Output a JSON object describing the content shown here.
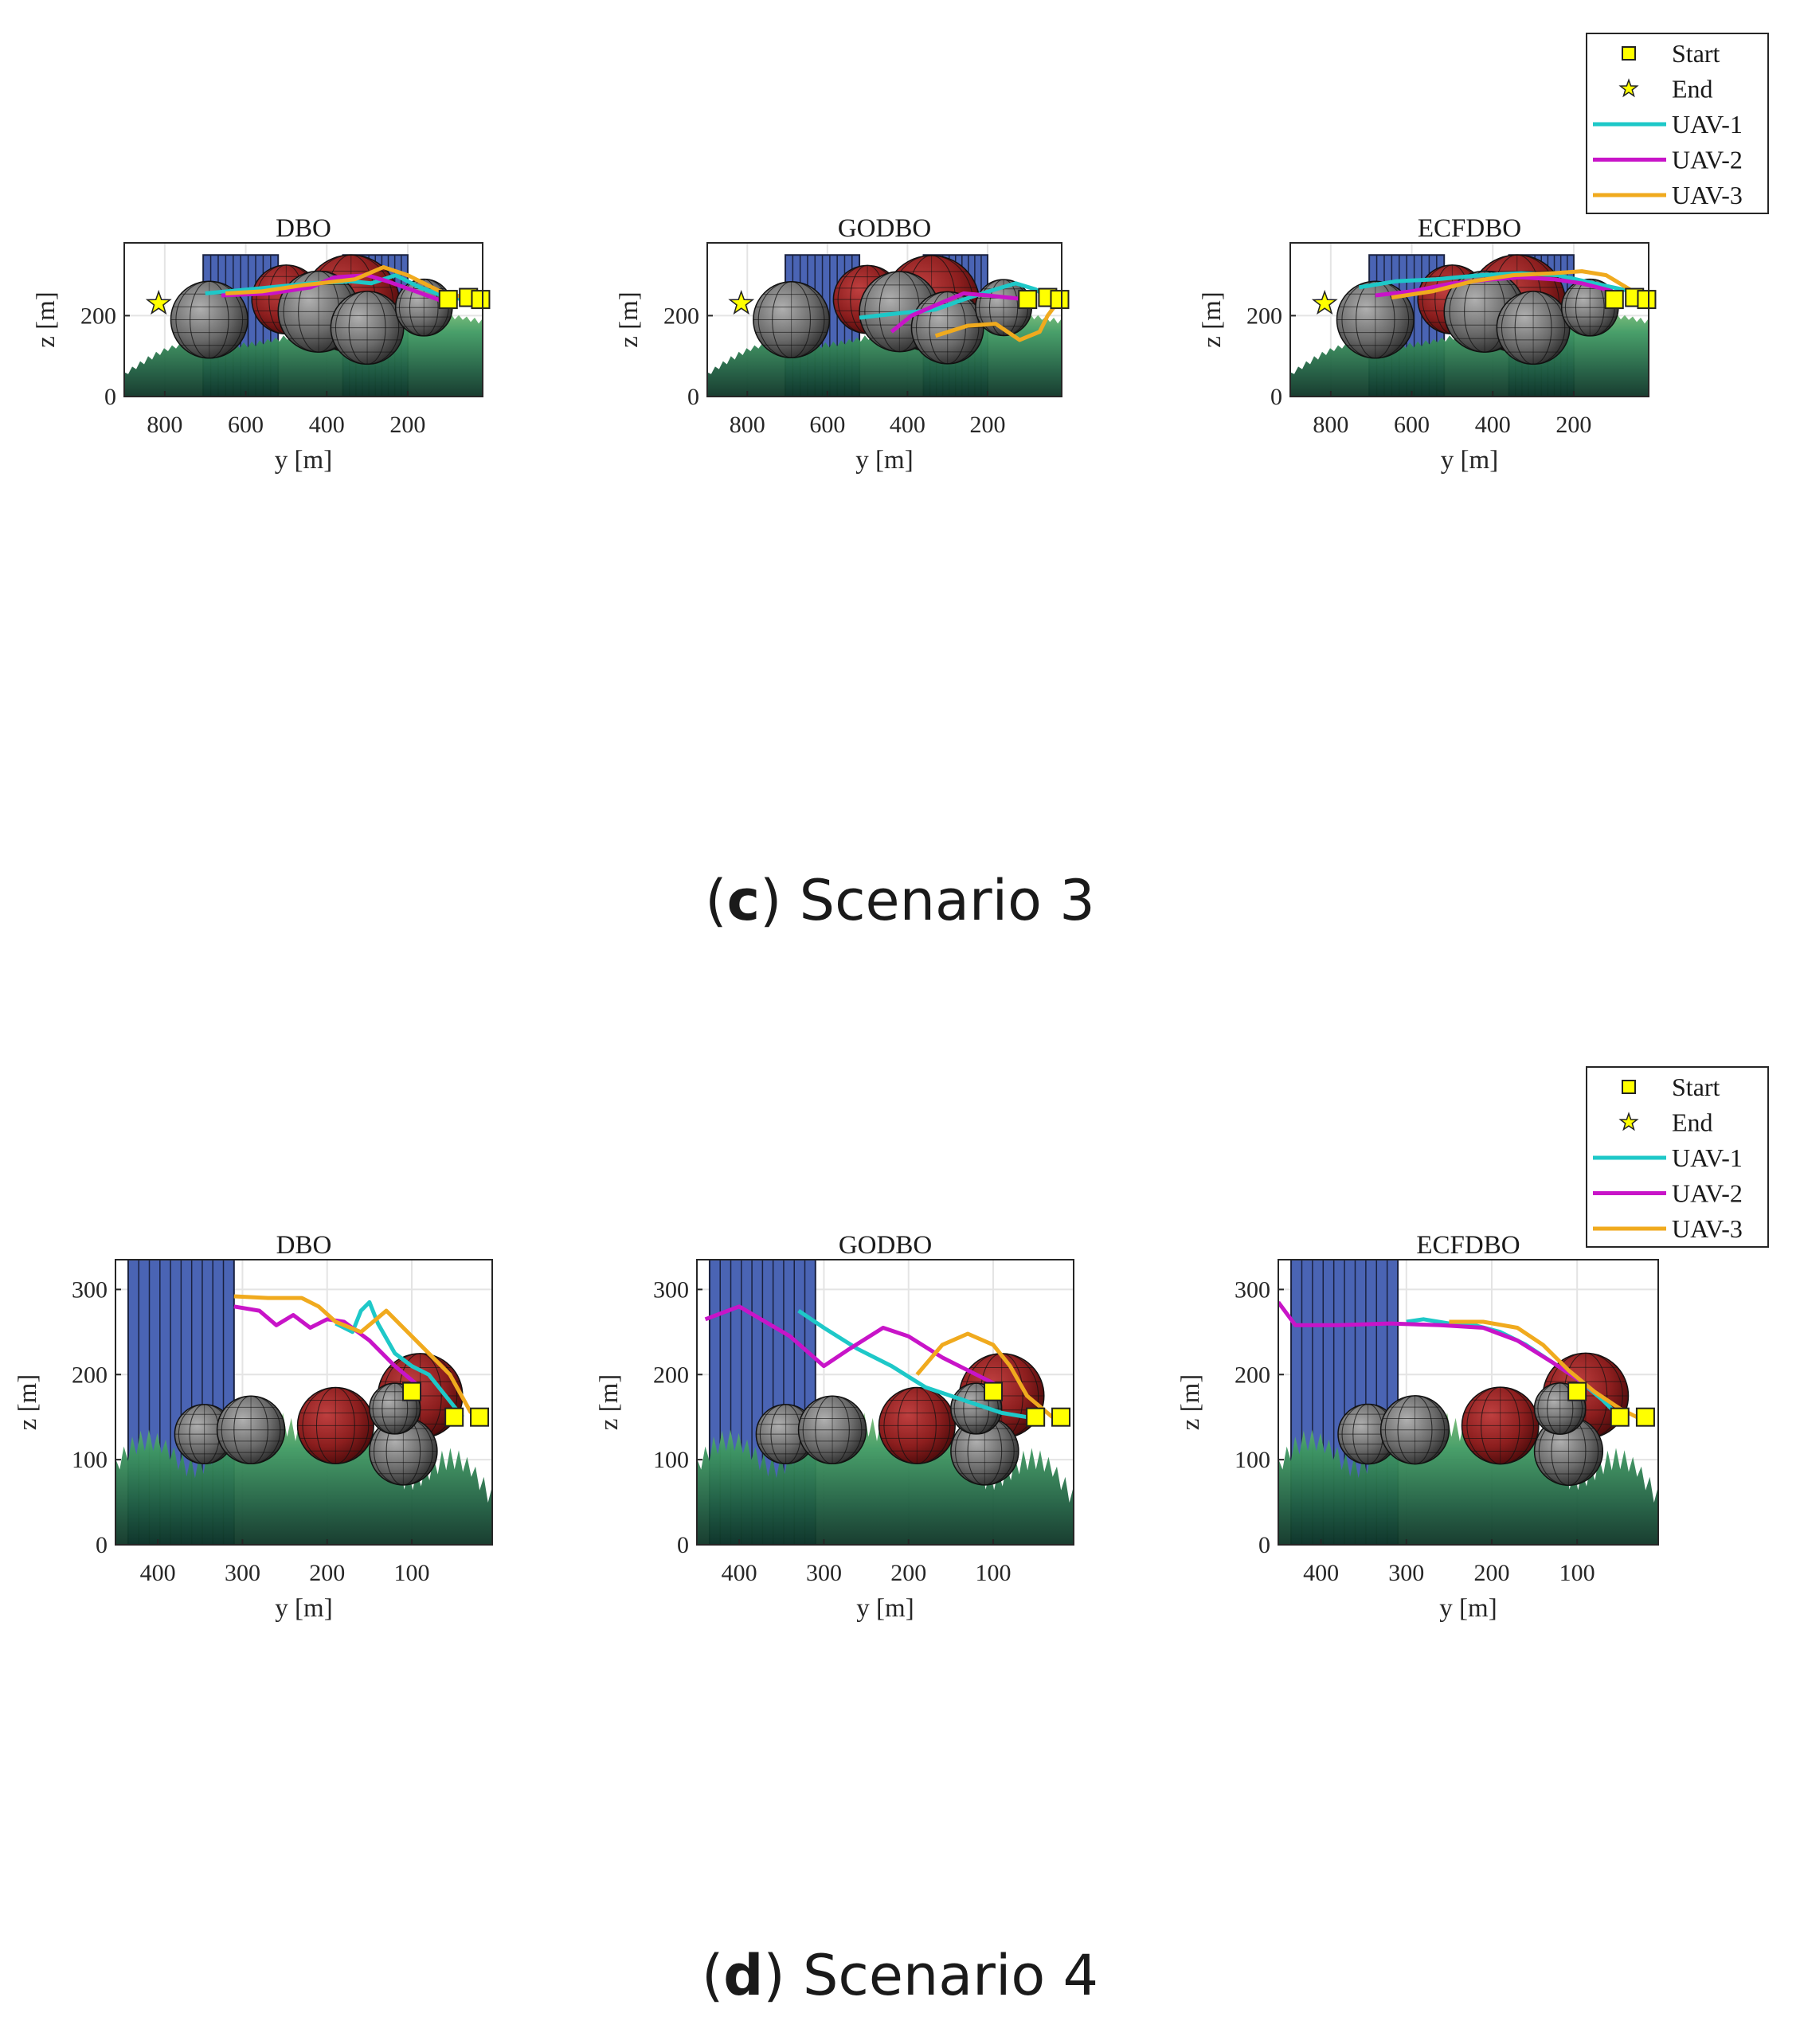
{
  "legend_entries": [
    {
      "name": "Start",
      "marker": "square",
      "color": "#ffff00"
    },
    {
      "name": "End",
      "marker": "star",
      "color": "#ffff00"
    },
    {
      "name": "UAV-1",
      "marker": "line",
      "color": "#1ec8c8"
    },
    {
      "name": "UAV-2",
      "marker": "line",
      "color": "#c814c8"
    },
    {
      "name": "UAV-3",
      "marker": "line",
      "color": "#f0aa1e"
    }
  ],
  "colors": {
    "uav1": "#1ec8c8",
    "uav2": "#c814c8",
    "uav3": "#f0aa1e",
    "building": "#4a64b4",
    "threat_red": "#8c1e1e",
    "threat_gray": "#646464",
    "terrain_light": "#86c070",
    "terrain_dark": "#0f3a28",
    "marker": "#ffff00"
  },
  "scenarios": [
    {
      "caption_label": "c",
      "caption_text": "Scenario 3",
      "chart_data": [
        {
          "type": "line",
          "title": "DBO",
          "xlabel": "y [m]",
          "ylabel": "z [m]",
          "xlim": [
            900,
            15
          ],
          "ylim": [
            0,
            380
          ],
          "x_reversed": true,
          "xticks": [
            800,
            600,
            400,
            200
          ],
          "yticks": [
            0,
            200
          ],
          "start_points": [
            [
              100,
              240
            ],
            [
              50,
              245
            ],
            [
              20,
              240
            ]
          ],
          "end_point": [
            815,
            230
          ],
          "series": [
            {
              "name": "UAV-1",
              "x": [
                700,
                560,
                440,
                340,
                290,
                230,
                170,
                110,
                60
              ],
              "y": [
                255,
                268,
                280,
                285,
                280,
                300,
                270,
                248,
                240
              ]
            },
            {
              "name": "UAV-2",
              "x": [
                660,
                540,
                440,
                380,
                300,
                250,
                180,
                120,
                100
              ],
              "y": [
                250,
                255,
                270,
                295,
                300,
                285,
                260,
                238,
                240
              ]
            },
            {
              "name": "UAV-3",
              "x": [
                650,
                560,
                460,
                330,
                260,
                200,
                120,
                60,
                25
              ],
              "y": [
                255,
                260,
                275,
                290,
                320,
                300,
                260,
                245,
                240
              ]
            }
          ]
        },
        {
          "type": "line",
          "title": "GODBO",
          "xlabel": "y [m]",
          "ylabel": "z [m]",
          "xlim": [
            900,
            15
          ],
          "ylim": [
            0,
            380
          ],
          "x_reversed": true,
          "xticks": [
            800,
            600,
            400,
            200
          ],
          "yticks": [
            0,
            200
          ],
          "start_points": [
            [
              100,
              240
            ],
            [
              50,
              245
            ],
            [
              20,
              240
            ]
          ],
          "end_point": [
            815,
            230
          ],
          "series": [
            {
              "name": "UAV-1",
              "x": [
                520,
                430,
                330,
                260,
                190,
                130,
                80,
                50
              ],
              "y": [
                195,
                205,
                215,
                240,
                262,
                280,
                265,
                245
              ]
            },
            {
              "name": "UAV-2",
              "x": [
                440,
                390,
                320,
                260,
                200,
                150,
                100
              ],
              "y": [
                160,
                200,
                230,
                255,
                250,
                245,
                240
              ]
            },
            {
              "name": "UAV-3",
              "x": [
                330,
                250,
                180,
                120,
                70,
                50,
                20
              ],
              "y": [
                150,
                175,
                180,
                140,
                160,
                200,
                240
              ]
            }
          ]
        },
        {
          "type": "line",
          "title": "ECFDBO",
          "xlabel": "y [m]",
          "ylabel": "z [m]",
          "xlim": [
            900,
            15
          ],
          "ylim": [
            0,
            380
          ],
          "x_reversed": true,
          "xticks": [
            800,
            600,
            400,
            200
          ],
          "yticks": [
            0,
            200
          ],
          "start_points": [
            [
              100,
              240
            ],
            [
              50,
              245
            ],
            [
              20,
              240
            ]
          ],
          "end_point": [
            815,
            230
          ],
          "series": [
            {
              "name": "UAV-1",
              "x": [
                730,
                640,
                540,
                430,
                330,
                240,
                150,
                80,
                40
              ],
              "y": [
                270,
                285,
                290,
                300,
                305,
                300,
                280,
                265,
                255
              ]
            },
            {
              "name": "UAV-2",
              "x": [
                690,
                600,
                500,
                400,
                330,
                250,
                180,
                110,
                80
              ],
              "y": [
                250,
                260,
                280,
                290,
                295,
                290,
                280,
                262,
                245
              ]
            },
            {
              "name": "UAV-3",
              "x": [
                650,
                550,
                450,
                350,
                250,
                180,
                120,
                70,
                20
              ],
              "y": [
                245,
                260,
                285,
                300,
                305,
                310,
                300,
                270,
                240
              ]
            }
          ]
        }
      ]
    },
    {
      "caption_label": "d",
      "caption_text": "Scenario 4",
      "chart_data": [
        {
          "type": "line",
          "title": "DBO",
          "xlabel": "y [m]",
          "ylabel": "z [m]",
          "xlim": [
            450,
            5
          ],
          "ylim": [
            0,
            335
          ],
          "x_reversed": true,
          "xticks": [
            400,
            300,
            200,
            100
          ],
          "yticks": [
            0,
            100,
            200,
            300
          ],
          "start_points": [
            [
              100,
              180
            ],
            [
              50,
              150
            ],
            [
              20,
              150
            ]
          ],
          "end_point": null,
          "series": [
            {
              "name": "UAV-1",
              "x": [
                190,
                170,
                160,
                150,
                140,
                120,
                100,
                80,
                60,
                40
              ],
              "y": [
                260,
                250,
                275,
                285,
                260,
                225,
                210,
                200,
                175,
                150
              ]
            },
            {
              "name": "UAV-2",
              "x": [
                310,
                280,
                260,
                240,
                220,
                200,
                180,
                150,
                120,
                90
              ],
              "y": [
                280,
                275,
                258,
                270,
                255,
                265,
                262,
                240,
                210,
                185
              ]
            },
            {
              "name": "UAV-3",
              "x": [
                310,
                270,
                230,
                210,
                190,
                160,
                130,
                110,
                85,
                55,
                30
              ],
              "y": [
                292,
                290,
                290,
                280,
                262,
                250,
                275,
                255,
                230,
                200,
                155
              ]
            }
          ]
        },
        {
          "type": "line",
          "title": "GODBO",
          "xlabel": "y [m]",
          "ylabel": "z [m]",
          "xlim": [
            450,
            5
          ],
          "ylim": [
            0,
            335
          ],
          "x_reversed": true,
          "xticks": [
            400,
            300,
            200,
            100
          ],
          "yticks": [
            0,
            100,
            200,
            300
          ],
          "start_points": [
            [
              100,
              180
            ],
            [
              50,
              150
            ],
            [
              20,
              150
            ]
          ],
          "end_point": null,
          "series": [
            {
              "name": "UAV-1",
              "x": [
                330,
                300,
                260,
                220,
                180,
                150,
                120,
                90,
                60
              ],
              "y": [
                275,
                255,
                230,
                210,
                185,
                175,
                165,
                155,
                150
              ]
            },
            {
              "name": "UAV-2",
              "x": [
                440,
                400,
                340,
                300,
                270,
                230,
                200,
                160,
                120,
                90
              ],
              "y": [
                265,
                280,
                245,
                210,
                230,
                255,
                245,
                220,
                200,
                185
              ]
            },
            {
              "name": "UAV-3",
              "x": [
                190,
                160,
                130,
                100,
                80,
                60,
                30
              ],
              "y": [
                200,
                235,
                248,
                235,
                210,
                175,
                150
              ]
            }
          ]
        },
        {
          "type": "line",
          "title": "ECFDBO",
          "xlabel": "y [m]",
          "ylabel": "z [m]",
          "xlim": [
            450,
            5
          ],
          "ylim": [
            0,
            335
          ],
          "x_reversed": true,
          "xticks": [
            400,
            300,
            200,
            100
          ],
          "yticks": [
            0,
            100,
            200,
            300
          ],
          "start_points": [
            [
              100,
              180
            ],
            [
              50,
              150
            ],
            [
              20,
              150
            ]
          ],
          "end_point": null,
          "series": [
            {
              "name": "UAV-1",
              "x": [
                300,
                280,
                250,
                220,
                190,
                160,
                130,
                100,
                70,
                50
              ],
              "y": [
                262,
                265,
                260,
                258,
                250,
                235,
                215,
                195,
                170,
                150
              ]
            },
            {
              "name": "UAV-2",
              "x": [
                450,
                430,
                380,
                320,
                260,
                210,
                170,
                130,
                100,
                80
              ],
              "y": [
                285,
                258,
                258,
                260,
                258,
                255,
                240,
                215,
                195,
                180
              ]
            },
            {
              "name": "UAV-3",
              "x": [
                250,
                210,
                170,
                140,
                110,
                80,
                50,
                30
              ],
              "y": [
                262,
                262,
                255,
                235,
                205,
                180,
                160,
                150
              ]
            }
          ]
        }
      ]
    }
  ]
}
